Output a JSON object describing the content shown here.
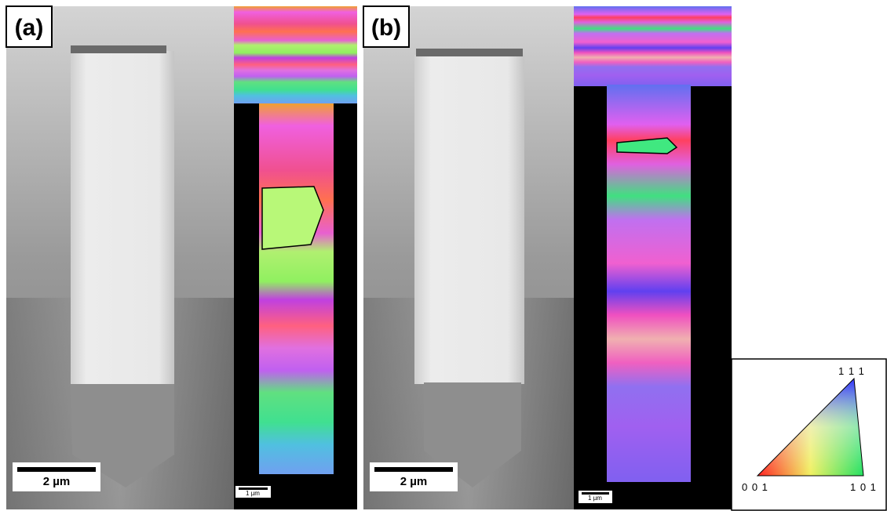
{
  "panels": [
    {
      "label": "(a)",
      "sem_scale_bar": "2 µm",
      "ebsd_scale_bar": "1 µm"
    },
    {
      "label": "(b)",
      "sem_scale_bar": "2 µm",
      "ebsd_scale_bar": "1 µm"
    }
  ],
  "legend": {
    "corner_001": "0 0 1",
    "corner_101": "1 0 1",
    "corner_111": "1 1 1"
  }
}
